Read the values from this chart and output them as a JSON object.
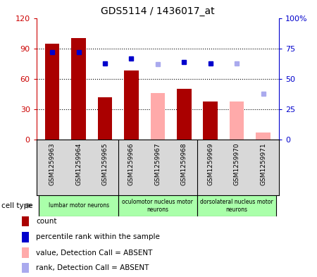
{
  "title": "GDS5114 / 1436017_at",
  "samples": [
    "GSM1259963",
    "GSM1259964",
    "GSM1259965",
    "GSM1259966",
    "GSM1259967",
    "GSM1259968",
    "GSM1259969",
    "GSM1259970",
    "GSM1259971"
  ],
  "count_values": [
    95,
    100,
    42,
    68,
    null,
    50,
    38,
    null,
    null
  ],
  "count_absent": [
    null,
    null,
    null,
    null,
    46,
    null,
    null,
    38,
    7
  ],
  "rank_present": [
    72,
    72,
    63,
    67,
    null,
    64,
    63,
    null,
    null
  ],
  "rank_absent": [
    null,
    null,
    null,
    null,
    62,
    null,
    null,
    63,
    38
  ],
  "left_ylim": [
    0,
    120
  ],
  "right_ylim": [
    0,
    100
  ],
  "left_yticks": [
    0,
    30,
    60,
    90,
    120
  ],
  "left_yticklabels": [
    "0",
    "30",
    "60",
    "90",
    "120"
  ],
  "right_yticks": [
    0,
    25,
    50,
    75,
    100
  ],
  "right_yticklabels": [
    "0",
    "25",
    "50",
    "75",
    "100%"
  ],
  "count_color": "#aa0000",
  "count_absent_color": "#ffaaaa",
  "rank_present_color": "#0000cc",
  "rank_absent_color": "#aaaaee",
  "cell_groups": [
    {
      "label": "lumbar motor neurons",
      "start": 0,
      "end": 2
    },
    {
      "label": "oculomotor nucleus motor\nneurons",
      "start": 3,
      "end": 5
    },
    {
      "label": "dorsolateral nucleus motor\nneurons",
      "start": 6,
      "end": 8
    }
  ],
  "cell_group_color": "#aaffaa",
  "tick_color_left": "#cc0000",
  "tick_color_right": "#0000cc",
  "bar_width": 0.55,
  "legend_items": [
    {
      "color": "#aa0000",
      "label": "count"
    },
    {
      "color": "#0000cc",
      "label": "percentile rank within the sample"
    },
    {
      "color": "#ffaaaa",
      "label": "value, Detection Call = ABSENT"
    },
    {
      "color": "#aaaaee",
      "label": "rank, Detection Call = ABSENT"
    }
  ]
}
